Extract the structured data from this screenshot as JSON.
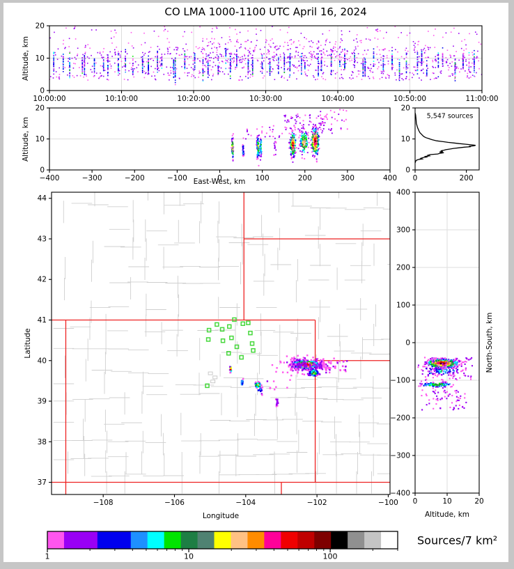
{
  "title": "CO LMA 1000-1100 UTC April 16, 2024",
  "colors": {
    "cmap": [
      "#FF55EE",
      "#9900F5",
      "#0000EE",
      "#1E90FF",
      "#00FFFF",
      "#00E400",
      "#1D7E44",
      "#4F8272",
      "#FFFF00",
      "#FFC184",
      "#FF8C00",
      "#FF0099",
      "#F00000",
      "#C00000",
      "#7E0000",
      "#000000"
    ],
    "column_palette": {
      "colors": [
        "#0000EE",
        "#1E90FF",
        "#00FFFF",
        "#00E400",
        "#9900F5",
        "#FF55EE"
      ],
      "weights": [
        0.5,
        0.1,
        0.08,
        0.05,
        0.12,
        0.15
      ]
    },
    "state_border": "#ee2222",
    "county_line": "#cfcfcf",
    "grid_line": "#dddddd",
    "station_green": "#46d83c",
    "histogram_line": "#000000"
  },
  "chart_data": {
    "time_height": {
      "type": "scatter",
      "ylabel": "Altitude, km",
      "xrange": [
        0,
        3600
      ],
      "yrange": [
        0,
        20
      ],
      "xticks": {
        "values": [
          0,
          600,
          1200,
          1800,
          2400,
          3000,
          3600
        ],
        "labels": [
          "10:00:00",
          "10:10:00",
          "10:20:00",
          "10:30:00",
          "10:40:00",
          "10:50:00",
          "11:00:00"
        ]
      },
      "yticks": {
        "values": [
          0,
          10,
          20
        ],
        "labels": [
          "0",
          "10",
          "20"
        ]
      },
      "grid_x": [
        600,
        1200,
        1800,
        2400,
        3000
      ],
      "grid_y": [
        10
      ],
      "clusters": [
        {
          "dist": "cols",
          "ncols": 56,
          "coln": 26,
          "x0": 25,
          "x1": 3575,
          "ymu": 8.1,
          "musd": 0.9,
          "ysd": 1.6
        },
        {
          "dist": "box",
          "x0": 0,
          "x1": 3600,
          "y0": 3.2,
          "y1": 13.5,
          "n": 760,
          "peak": 0,
          "jit": 1.4
        },
        {
          "dist": "box",
          "x0": 0,
          "x1": 3600,
          "y0": 13,
          "y1": 19.8,
          "n": 150,
          "peak": 0,
          "jit": 0.8
        },
        {
          "dist": "box",
          "x0": 1200,
          "x1": 2600,
          "y0": 9,
          "y1": 16,
          "n": 160,
          "peak": 0,
          "jit": 1.2
        }
      ]
    },
    "east_west": {
      "type": "scatter",
      "xlabel": "East-West, km",
      "ylabel": "Altitude, km",
      "xrange": [
        -400,
        400
      ],
      "yrange": [
        0,
        20
      ],
      "xticks": {
        "values": [
          -400,
          -300,
          -200,
          -100,
          0,
          100,
          200,
          300,
          400
        ],
        "labels": [
          "−400",
          "−300",
          "−200",
          "−100",
          "0",
          "100",
          "200",
          "300",
          "400"
        ]
      },
      "yticks": {
        "values": [
          0,
          10,
          20
        ],
        "labels": [
          "0",
          "10",
          "20"
        ]
      },
      "grid_x": [],
      "grid_y": [
        10
      ],
      "clusters": [
        {
          "cx": 30,
          "cy": 7,
          "sx": 1.1,
          "sy": 1.7,
          "n": 60,
          "peak": 11
        },
        {
          "cx": 55,
          "cy": 6.8,
          "sx": 0.8,
          "sy": 1.4,
          "n": 30,
          "peak": 4
        },
        {
          "cx": 90,
          "cy": 7.2,
          "sx": 1.6,
          "sy": 1.9,
          "n": 80,
          "peak": 8
        },
        {
          "cx": 97,
          "cy": 7.6,
          "sx": 1.2,
          "sy": 1.6,
          "n": 40,
          "peak": 6
        },
        {
          "cx": 130,
          "cy": 8.5,
          "sx": 2.2,
          "sy": 2.2,
          "n": 16,
          "peak": 1,
          "jit": 1
        },
        {
          "cx": 172,
          "cy": 8.2,
          "sx": 3.6,
          "sy": 2.1,
          "n": 175,
          "peak": 14
        },
        {
          "cx": 198,
          "cy": 8.8,
          "sx": 5.0,
          "sy": 2.0,
          "n": 120,
          "peak": 10
        },
        {
          "cx": 224,
          "cy": 9.2,
          "sx": 4.6,
          "sy": 2.4,
          "n": 215,
          "peak": 15
        },
        {
          "dist": "box",
          "x0": 150,
          "x1": 265,
          "y0": 11.5,
          "y1": 18,
          "n": 80,
          "peak": 0,
          "jit": 1
        },
        {
          "dist": "box",
          "x0": 60,
          "x1": 150,
          "y0": 10,
          "y1": 14,
          "n": 22,
          "peak": 0,
          "jit": 0.8
        },
        {
          "dist": "box",
          "x0": 230,
          "x1": 300,
          "y0": 13,
          "y1": 19.5,
          "n": 24,
          "peak": 0,
          "jit": 0.8
        }
      ]
    },
    "histogram": {
      "type": "line",
      "annotation": "5,547 sources",
      "xrange": [
        0,
        250
      ],
      "yrange": [
        0,
        20
      ],
      "xticks": {
        "values": [
          0,
          200
        ],
        "labels": [
          "0",
          "200"
        ]
      },
      "yticks": {
        "values": [
          0,
          10,
          20
        ],
        "labels": [
          "0",
          "10",
          "20"
        ]
      },
      "curve": [
        [
          18.4,
          0
        ],
        [
          17.8,
          2
        ],
        [
          17,
          3
        ],
        [
          16,
          4
        ],
        [
          15,
          5
        ],
        [
          14.4,
          7
        ],
        [
          13.8,
          9
        ],
        [
          13.2,
          12
        ],
        [
          12.6,
          15
        ],
        [
          12,
          19
        ],
        [
          11.5,
          25
        ],
        [
          11,
          31
        ],
        [
          10.7,
          36
        ],
        [
          10.4,
          42
        ],
        [
          10.1,
          55
        ],
        [
          9.9,
          60
        ],
        [
          9.7,
          68
        ],
        [
          9.4,
          84
        ],
        [
          9.1,
          112
        ],
        [
          8.9,
          128
        ],
        [
          8.7,
          152
        ],
        [
          8.5,
          172
        ],
        [
          8.3,
          198
        ],
        [
          8.1,
          222
        ],
        [
          7.95,
          236
        ],
        [
          7.8,
          230
        ],
        [
          7.65,
          210
        ],
        [
          7.5,
          218
        ],
        [
          7.35,
          192
        ],
        [
          7.15,
          172
        ],
        [
          6.95,
          150
        ],
        [
          6.75,
          136
        ],
        [
          6.55,
          120
        ],
        [
          6.35,
          112
        ],
        [
          6.15,
          100
        ],
        [
          5.95,
          108
        ],
        [
          5.75,
          95
        ],
        [
          5.55,
          112
        ],
        [
          5.35,
          96
        ],
        [
          5.15,
          88
        ],
        [
          4.95,
          58
        ],
        [
          4.75,
          50
        ],
        [
          4.55,
          56
        ],
        [
          4.35,
          40
        ],
        [
          4.15,
          45
        ],
        [
          3.95,
          30
        ],
        [
          3.75,
          22
        ],
        [
          3.55,
          28
        ],
        [
          3.35,
          12
        ],
        [
          3.15,
          6
        ],
        [
          2.95,
          3
        ],
        [
          2.7,
          2
        ],
        [
          2.5,
          1
        ],
        [
          2.3,
          0
        ]
      ]
    },
    "map": {
      "type": "scatter",
      "xlabel": "Longitude",
      "ylabel": "Latitude",
      "xrange": [
        -109.45,
        -99.95
      ],
      "yrange": [
        36.7,
        44.15
      ],
      "xticks": {
        "values": [
          -108,
          -106,
          -104,
          -102,
          -100
        ],
        "labels": [
          "−108",
          "−106",
          "−104",
          "−102",
          "−100"
        ]
      },
      "yticks": {
        "values": [
          37,
          38,
          39,
          40,
          41,
          42,
          43,
          44
        ],
        "labels": [
          "37",
          "38",
          "39",
          "40",
          "41",
          "42",
          "43",
          "44"
        ]
      },
      "state_borders": [
        [
          [
            -109.45,
            41
          ],
          [
            -102.05,
            41
          ]
        ],
        [
          [
            -104.05,
            44.15
          ],
          [
            -104.05,
            41
          ]
        ],
        [
          [
            -104.05,
            43
          ],
          [
            -99.95,
            43
          ]
        ],
        [
          [
            -102.05,
            41
          ],
          [
            -102.05,
            37
          ]
        ],
        [
          [
            -102.05,
            40
          ],
          [
            -99.95,
            40
          ]
        ],
        [
          [
            -109.05,
            41
          ],
          [
            -109.05,
            36.7
          ]
        ],
        [
          [
            -109.45,
            37
          ],
          [
            -99.95,
            37
          ]
        ],
        [
          [
            -103.0,
            37
          ],
          [
            -103.0,
            36.7
          ]
        ]
      ],
      "stations": [
        [
          -104.32,
          41.01
        ],
        [
          -104.08,
          40.91
        ],
        [
          -103.93,
          40.93
        ],
        [
          -104.81,
          40.89
        ],
        [
          -105.03,
          40.75
        ],
        [
          -104.66,
          40.77
        ],
        [
          -104.46,
          40.84
        ],
        [
          -103.87,
          40.68
        ],
        [
          -105.05,
          40.52
        ],
        [
          -104.64,
          40.49
        ],
        [
          -104.4,
          40.56
        ],
        [
          -104.25,
          40.34
        ],
        [
          -103.82,
          40.42
        ],
        [
          -104.48,
          40.18
        ],
        [
          -103.79,
          40.25
        ],
        [
          -104.12,
          40.08
        ],
        [
          -105.08,
          39.38
        ]
      ],
      "clusters": [
        {
          "cx": -102.32,
          "cy": 39.9,
          "sx": 0.2,
          "sy": 0.05,
          "n": 400,
          "peak": 15
        },
        {
          "cx": -102.32,
          "cy": 39.88,
          "sx": 0.38,
          "sy": 0.1,
          "n": 130,
          "peak": 1,
          "jit": 1
        },
        {
          "cx": -102.1,
          "cy": 39.7,
          "sx": 0.07,
          "sy": 0.05,
          "n": 80,
          "peak": 7
        },
        {
          "dist": "box",
          "x0": -101.9,
          "x1": -101.15,
          "y0": 39.7,
          "y1": 40.0,
          "n": 40,
          "peak": 0,
          "jit": 1
        },
        {
          "cx": -104.42,
          "cy": 39.79,
          "sx": 0.012,
          "sy": 0.045,
          "n": 14,
          "peak": 13
        },
        {
          "cx": -104.1,
          "cy": 39.45,
          "sx": 0.015,
          "sy": 0.04,
          "n": 12,
          "peak": 5
        },
        {
          "cx": -103.66,
          "cy": 39.4,
          "sx": 0.04,
          "sy": 0.035,
          "n": 40,
          "peak": 11
        },
        {
          "cx": -103.6,
          "cy": 39.3,
          "sx": 0.03,
          "sy": 0.04,
          "n": 14,
          "peak": 4
        },
        {
          "cx": -103.12,
          "cy": 39.0,
          "sx": 0.02,
          "sy": 0.06,
          "n": 16,
          "peak": 2,
          "jit": 1
        },
        {
          "dist": "box",
          "x0": -103.6,
          "x1": -102.6,
          "y0": 39.1,
          "y1": 39.6,
          "n": 10,
          "peak": 0,
          "jit": 0.6
        }
      ]
    },
    "north_south": {
      "type": "scatter",
      "xlabel": "Altitude, km",
      "ylabel": "North-South, km",
      "xrange": [
        0,
        20
      ],
      "yrange": [
        -400,
        400
      ],
      "xticks": {
        "values": [
          0,
          10,
          20
        ],
        "labels": [
          "0",
          "10",
          "20"
        ]
      },
      "yticks": {
        "values": [
          -400,
          -300,
          -200,
          -100,
          0,
          100,
          200,
          300,
          400
        ],
        "labels": [
          "−400",
          "−300",
          "−200",
          "−100",
          "0",
          "100",
          "200",
          "300",
          "400"
        ]
      },
      "grid_x": [
        10
      ],
      "grid_y": [
        -300,
        -200,
        -100,
        0,
        100,
        200,
        300
      ],
      "clusters": [
        {
          "cx": 8.5,
          "cy": -55,
          "sx": 2.6,
          "sy": 6,
          "n": 430,
          "peak": 15
        },
        {
          "cx": 8,
          "cy": -75,
          "sx": 3,
          "sy": 6,
          "n": 90,
          "peak": 4
        },
        {
          "cx": 7,
          "cy": -112,
          "sx": 2.6,
          "sy": 3.5,
          "n": 110,
          "peak": 7
        },
        {
          "dist": "box",
          "x0": 2,
          "x1": 16,
          "y0": -180,
          "y1": -125,
          "n": 60,
          "peak": 0,
          "jit": 1
        },
        {
          "dist": "box",
          "x0": 3,
          "x1": 18,
          "y0": -100,
          "y1": -40,
          "n": 90,
          "peak": 0,
          "jit": 1
        }
      ]
    },
    "colorbar": {
      "label": "Sources/7 km²",
      "range": [
        1,
        300
      ],
      "segment_colors": [
        "#FF55EE",
        "#9900F5",
        "#0000EE",
        "#1E90FF",
        "#00FFFF",
        "#00E400",
        "#1D7E44",
        "#4F8272",
        "#FFFF00",
        "#FFC184",
        "#FF8C00",
        "#FF0099",
        "#F00000",
        "#C00000",
        "#7E0000",
        "#000000",
        "#909090",
        "#C4C4C4",
        "#FFFFFF"
      ],
      "segment_flex": [
        1,
        2,
        2,
        1,
        1,
        1,
        1,
        1,
        1,
        1,
        1,
        1,
        1,
        1,
        1,
        1,
        1,
        1,
        1
      ],
      "major_ticks": [
        1,
        10,
        100
      ],
      "tick_labels": [
        "1",
        "10",
        "100"
      ],
      "minor_ticks": [
        2,
        3,
        4,
        5,
        6,
        7,
        8,
        9,
        20,
        30,
        40,
        50,
        60,
        70,
        80,
        90,
        200,
        300
      ]
    }
  }
}
